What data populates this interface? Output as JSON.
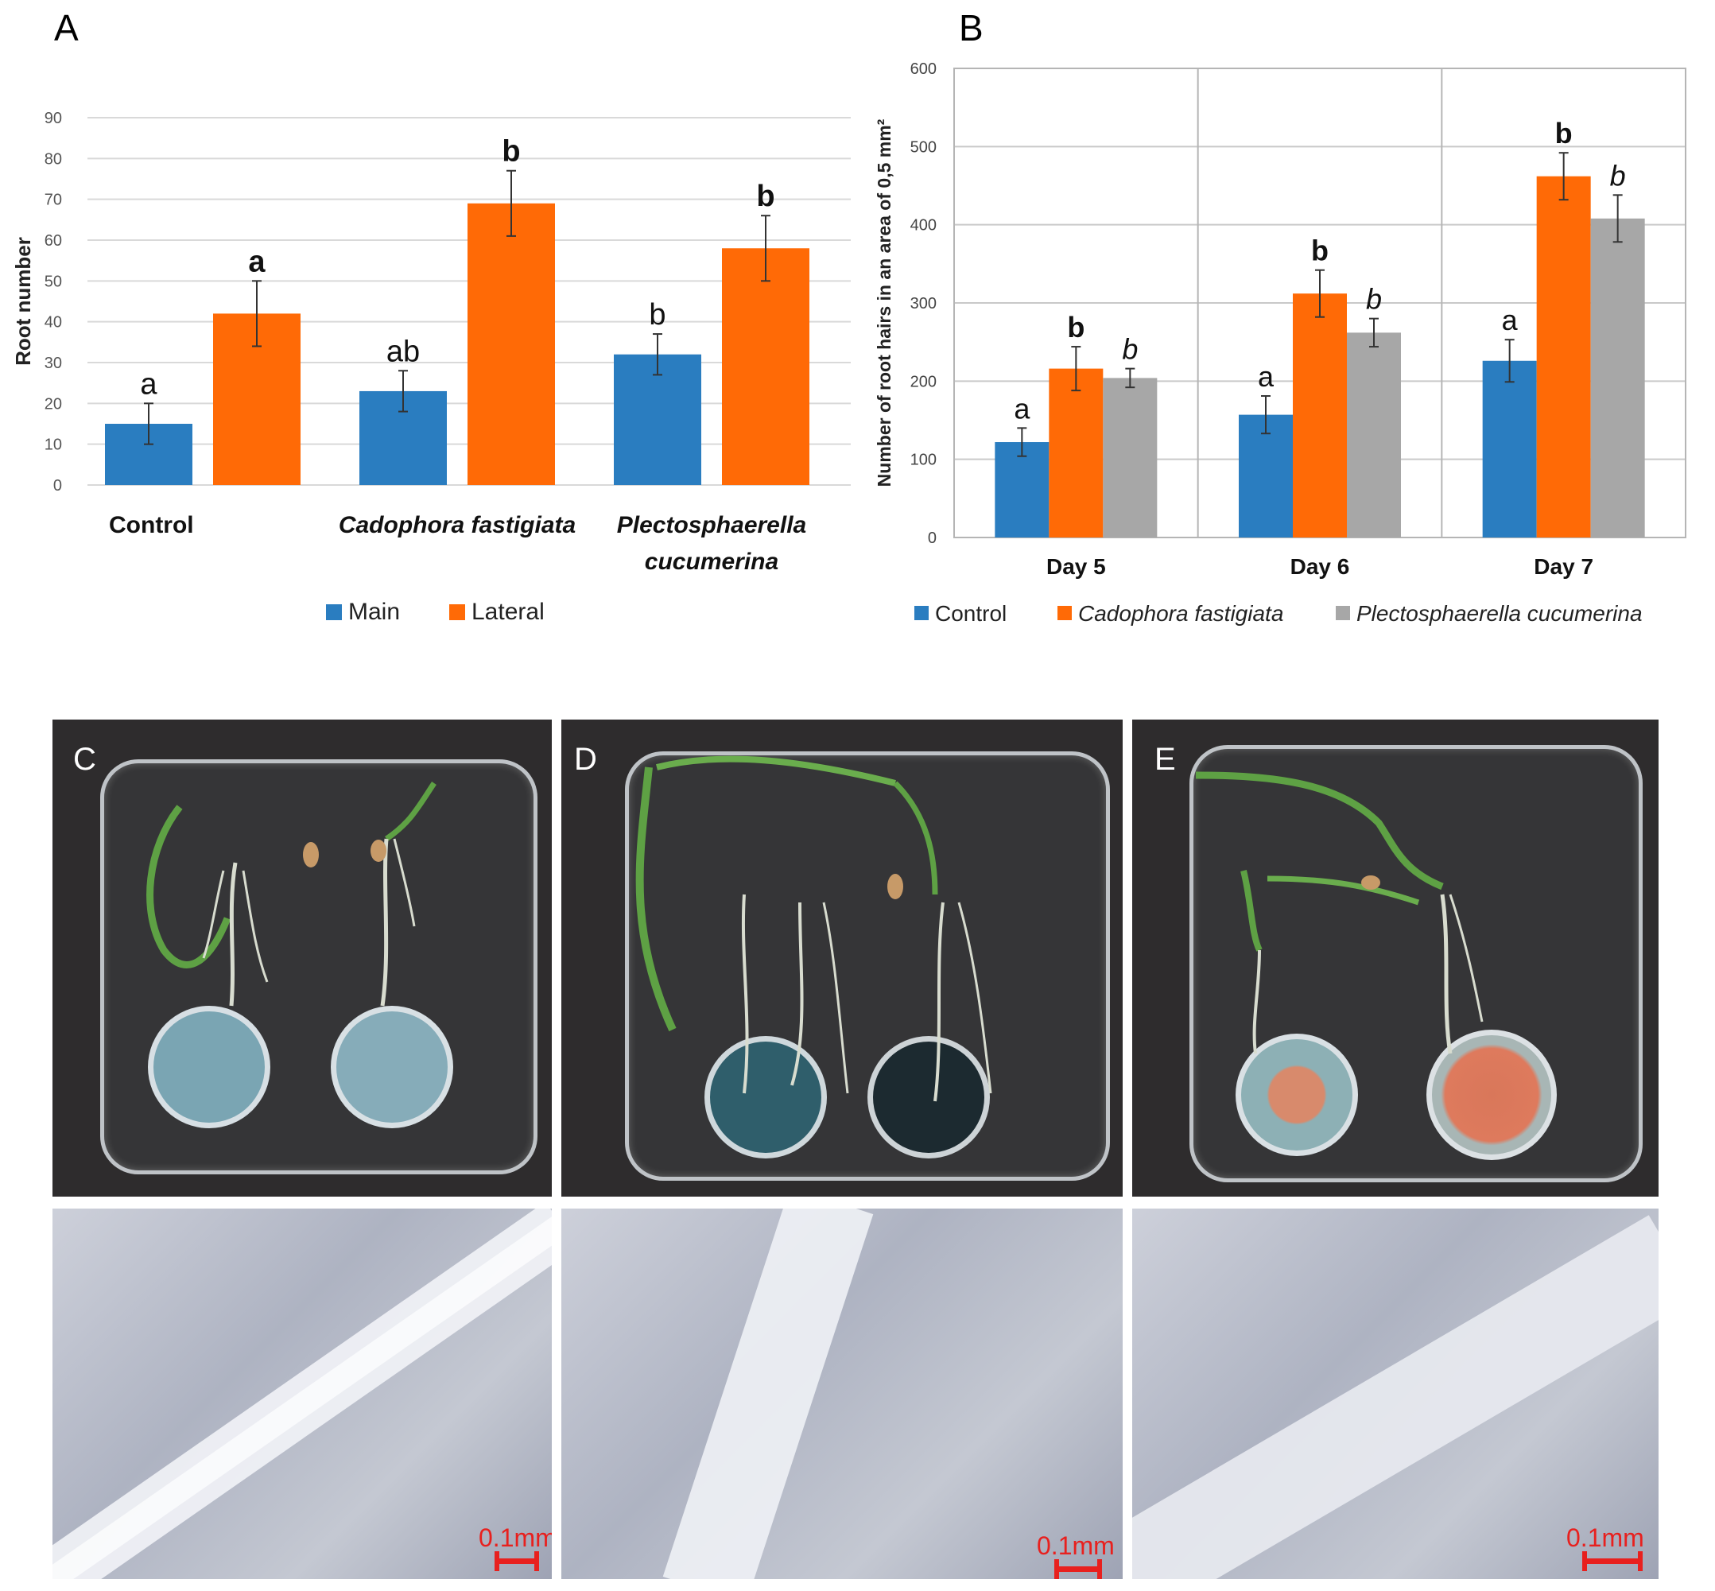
{
  "panels": {
    "a": "A",
    "b": "B",
    "c": "C",
    "d": "D",
    "e": "E"
  },
  "colors": {
    "main": "#2a7dc0",
    "lateral": "#ff6a06",
    "control": "#2a7dc0",
    "cadophora": "#ff6a06",
    "plecto": "#a7a7a7"
  },
  "chart_data": [
    {
      "type": "bar",
      "ylabel": "Root number",
      "ylim": [
        0,
        90
      ],
      "yticks": [
        "0",
        "10",
        "20",
        "30",
        "40",
        "50",
        "60",
        "70",
        "80",
        "90"
      ],
      "categories": [
        "Control",
        "Cadophora fastigiata",
        "Plectosphaerella cucumerina"
      ],
      "category_lines": [
        [
          "Control"
        ],
        [
          "Cadophora fastigiata"
        ],
        [
          "Plectosphaerella",
          "cucumerina"
        ]
      ],
      "series": [
        {
          "name": "Main",
          "values": [
            15,
            23,
            32
          ],
          "errors": [
            5,
            5,
            5
          ],
          "letters": [
            "a",
            "ab",
            "b"
          ]
        },
        {
          "name": "Lateral",
          "values": [
            42,
            69,
            58
          ],
          "errors": [
            8,
            8,
            8
          ],
          "letters": [
            "a",
            "b",
            "b"
          ]
        }
      ],
      "legend": "bottom"
    },
    {
      "type": "bar",
      "ylabel": "Number of root hairs in an area of  0,5 mm²",
      "ylim": [
        0,
        600
      ],
      "yticks": [
        "0",
        "100",
        "200",
        "300",
        "400",
        "500",
        "600"
      ],
      "categories": [
        "Day 5",
        "Day 6",
        "Day 7"
      ],
      "grid": true,
      "series": [
        {
          "name": "Control",
          "values": [
            122,
            157,
            226
          ],
          "errors": [
            18,
            24,
            27
          ],
          "letters": [
            "a",
            "a",
            "a"
          ]
        },
        {
          "name": "Cadophora fastigiata",
          "values": [
            216,
            312,
            462
          ],
          "errors": [
            28,
            30,
            30
          ],
          "letters": [
            "b",
            "b",
            "b"
          ]
        },
        {
          "name": "Plectosphaerella cucumerina",
          "values": [
            204,
            262,
            408
          ],
          "errors": [
            12,
            18,
            30
          ],
          "letters": [
            "b",
            "b",
            "b"
          ]
        }
      ],
      "legend": "bottom"
    }
  ],
  "scale_label": "0.1mm"
}
